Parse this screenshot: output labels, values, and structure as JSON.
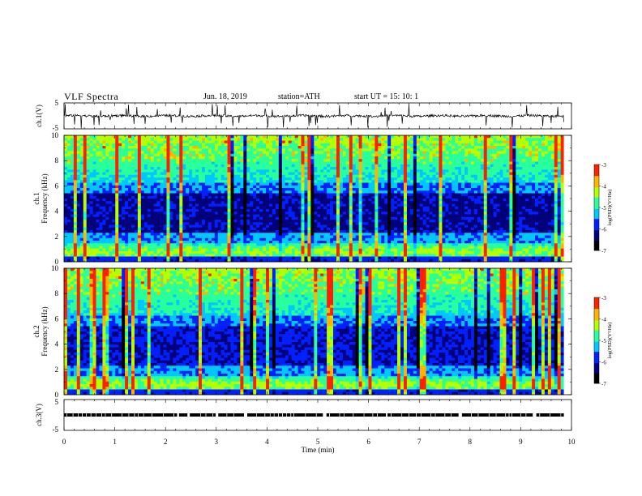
{
  "header": {
    "title": "VLF  Spectra",
    "date": "Jun. 18, 2019",
    "station": "station=ATH",
    "start": "start  UT  =    15: 10: 1"
  },
  "colors": {
    "axis": "#000000",
    "spectrogram_map": [
      "#000000",
      "#00007a",
      "#0020ff",
      "#00c8ff",
      "#29ff9a",
      "#b4ff00",
      "#ffb400",
      "#ff2000",
      "#ffffff"
    ]
  },
  "chart_data": [
    {
      "type": "line",
      "name": "ch1-waveform",
      "ylabel": "ch.1(V)",
      "ylim": [
        -5,
        5
      ],
      "yticks": [
        "5",
        "-5"
      ],
      "xlim": [
        0,
        10
      ],
      "note_visual": "noisy waveform near 0 V with frequent spikes"
    },
    {
      "type": "heatmap",
      "name": "ch1-spectrogram",
      "ylabel": "ch.1\nFrequency  (kHz)",
      "ylabel_lines": [
        "ch.1",
        "Frequency  (kHz)"
      ],
      "ylim": [
        0,
        10
      ],
      "yticks": [
        "0",
        "2",
        "4",
        "6",
        "8",
        "10"
      ],
      "xlim": [
        0,
        10
      ],
      "data_end_min": 9.85,
      "colorbar": {
        "label": "log(PSD)(V²/Hz)",
        "range": [
          -7,
          -3
        ],
        "ticks": [
          "-3",
          "-4",
          "-5",
          "-6",
          "-7"
        ]
      }
    },
    {
      "type": "heatmap",
      "name": "ch2-spectrogram",
      "ylabel": "ch.2\nFrequency  (kHz)",
      "ylabel_lines": [
        "ch.2",
        "Frequency  (kHz)"
      ],
      "ylim": [
        0,
        10
      ],
      "yticks": [
        "0",
        "2",
        "4",
        "6",
        "8",
        "10"
      ],
      "xlim": [
        0,
        10
      ],
      "data_end_min": 9.85,
      "colorbar": {
        "label": "log(PSD)(V²/Hz)",
        "range": [
          -7,
          -3
        ],
        "ticks": [
          "-3",
          "-4",
          "-5",
          "-6",
          "-7"
        ]
      }
    },
    {
      "type": "line",
      "name": "ch3-waveform",
      "ylabel": "ch.3(V)",
      "ylim": [
        -5,
        5
      ],
      "yticks": [
        "5",
        "-5"
      ],
      "xlim": [
        0,
        10
      ],
      "level_v": 0,
      "note_visual": "flat square pulse train near 0 V"
    }
  ],
  "xaxis": {
    "label": "Time  (min)",
    "ticks": [
      "0",
      "1",
      "2",
      "3",
      "4",
      "5",
      "6",
      "7",
      "8",
      "9",
      "10"
    ]
  }
}
